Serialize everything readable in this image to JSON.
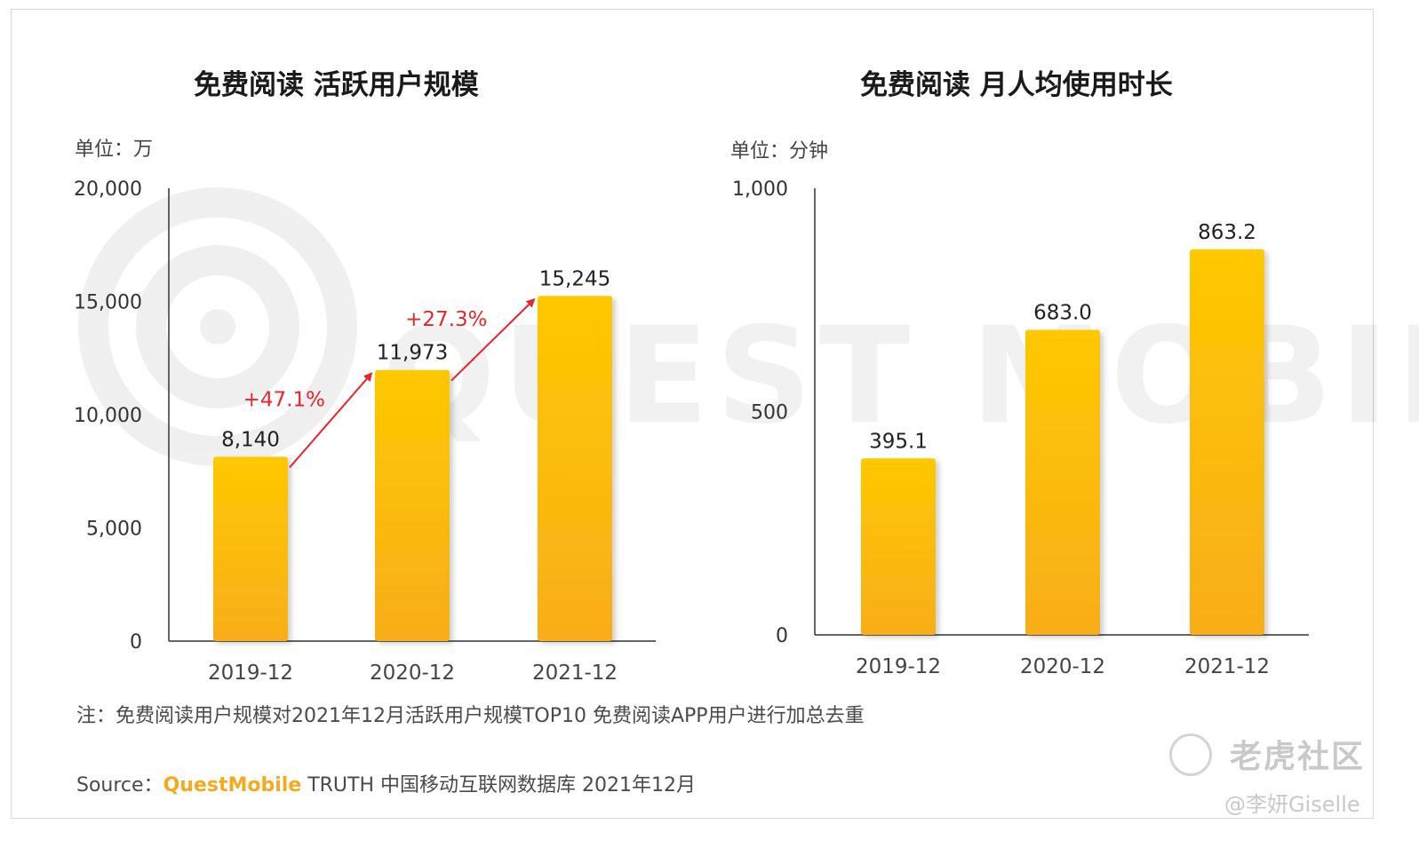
{
  "chart_data": [
    {
      "type": "bar",
      "title": "免费阅读 活跃用户规模",
      "unit_label": "单位：万",
      "categories": [
        "2019-12",
        "2020-12",
        "2021-12"
      ],
      "values": [
        8140,
        11973,
        15245
      ],
      "value_labels": [
        "8,140",
        "11,973",
        "15,245"
      ],
      "ylim": [
        0,
        20000
      ],
      "y_ticks": [
        0,
        5000,
        10000,
        15000,
        20000
      ],
      "y_tick_labels": [
        "0",
        "5,000",
        "10,000",
        "15,000",
        "20,000"
      ],
      "growth_annotations": [
        "+47.1%",
        "+27.3%"
      ],
      "bar_color_top": "#ffc800",
      "bar_color_bottom": "#f8ae1a",
      "annotation_color": "#e8262a"
    },
    {
      "type": "bar",
      "title": "免费阅读 月人均使用时长",
      "unit_label": "单位：分钟",
      "categories": [
        "2019-12",
        "2020-12",
        "2021-12"
      ],
      "values": [
        395.1,
        683.0,
        863.2
      ],
      "value_labels": [
        "395.1",
        "683.0",
        "863.2"
      ],
      "ylim": [
        0,
        1000
      ],
      "y_ticks": [
        0,
        500,
        1000
      ],
      "y_tick_labels": [
        "0",
        "500",
        "1,000"
      ],
      "bar_color_top": "#ffc800",
      "bar_color_bottom": "#f8ae1a"
    }
  ],
  "footer": {
    "note": "注：免费阅读用户规模对2021年12月活跃用户规模TOP10 免费阅读APP用户进行加总去重",
    "source_prefix": "Source：",
    "source_brand": "QuestMobile",
    "source_rest": " TRUTH 中国移动互联网数据库 2021年12月"
  },
  "watermark": {
    "background_text": "QUEST MOBILE",
    "logo_text": "老虎社区",
    "user_text": "@李妍Giselle"
  }
}
